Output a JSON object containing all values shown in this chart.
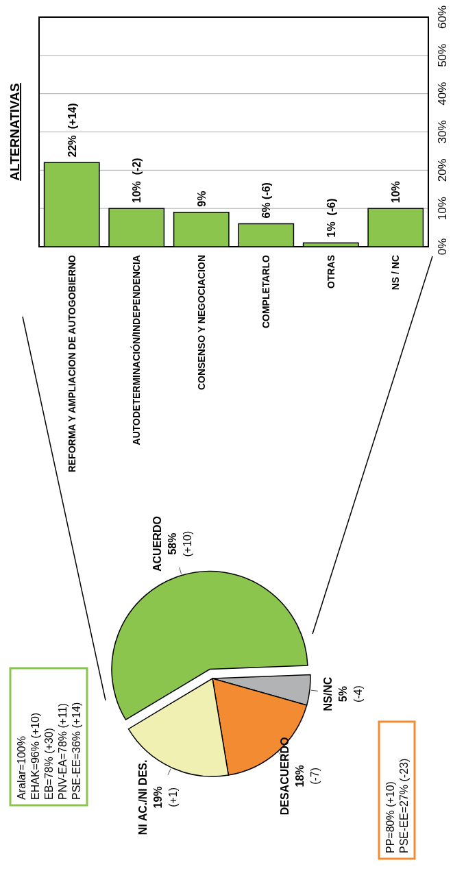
{
  "chart_data": [
    {
      "type": "pie",
      "categories": [
        "ACUERDO",
        "NS/NC",
        "DESACUERDO",
        "NI AC./NI DES."
      ],
      "values": [
        58,
        5,
        18,
        19
      ],
      "colors": [
        "#8bc54e",
        "#b1b3b4",
        "#f28b32",
        "#f0f0b2"
      ],
      "value_labels": [
        "58%",
        "5%",
        "18%",
        "19%"
      ],
      "annotations": [
        "(+10)",
        "(-4)",
        "(-7)",
        "(+1)",
        {
          "text": "Aralar=100%\nEHAK=96% (+10)\nEB=78% (+30)\nPNV-EA=78% (+11)\nPSE-EE=36% (+14)",
          "x": "ACUERDO"
        },
        {
          "text": "PP=80% (+10)\nPSE-EE=27% (-23)",
          "x": "DESACUERDO"
        }
      ]
    },
    {
      "type": "bar",
      "title": "ALTERNATIVAS",
      "categories": [
        "REFORMA Y AMPLIACION DE AUTOGOBIERNO",
        "AUTODETERMINACIÓN/INDEPENDENCIA",
        "CONSENSO Y NEGOCIACION",
        "COMPLETARLO",
        "OTRAS",
        "NS / NC"
      ],
      "values": [
        22,
        10,
        9,
        6,
        1,
        10
      ],
      "color": "#8bc54e",
      "value_labels": [
        "22%  (+14)",
        "10%  (-2)",
        "9%",
        "6% (-6)",
        "1%  (-6)",
        "10%"
      ],
      "ylim": [
        0,
        60
      ],
      "yticks": [
        {
          "value": 0,
          "label": "0%"
        },
        {
          "value": 10,
          "label": "10%"
        },
        {
          "value": 20,
          "label": "20%"
        },
        {
          "value": 30,
          "label": "30%"
        },
        {
          "value": 40,
          "label": "40%"
        },
        {
          "value": 50,
          "label": "50%"
        },
        {
          "value": 60,
          "label": "60%"
        }
      ],
      "grid": "y"
    }
  ]
}
